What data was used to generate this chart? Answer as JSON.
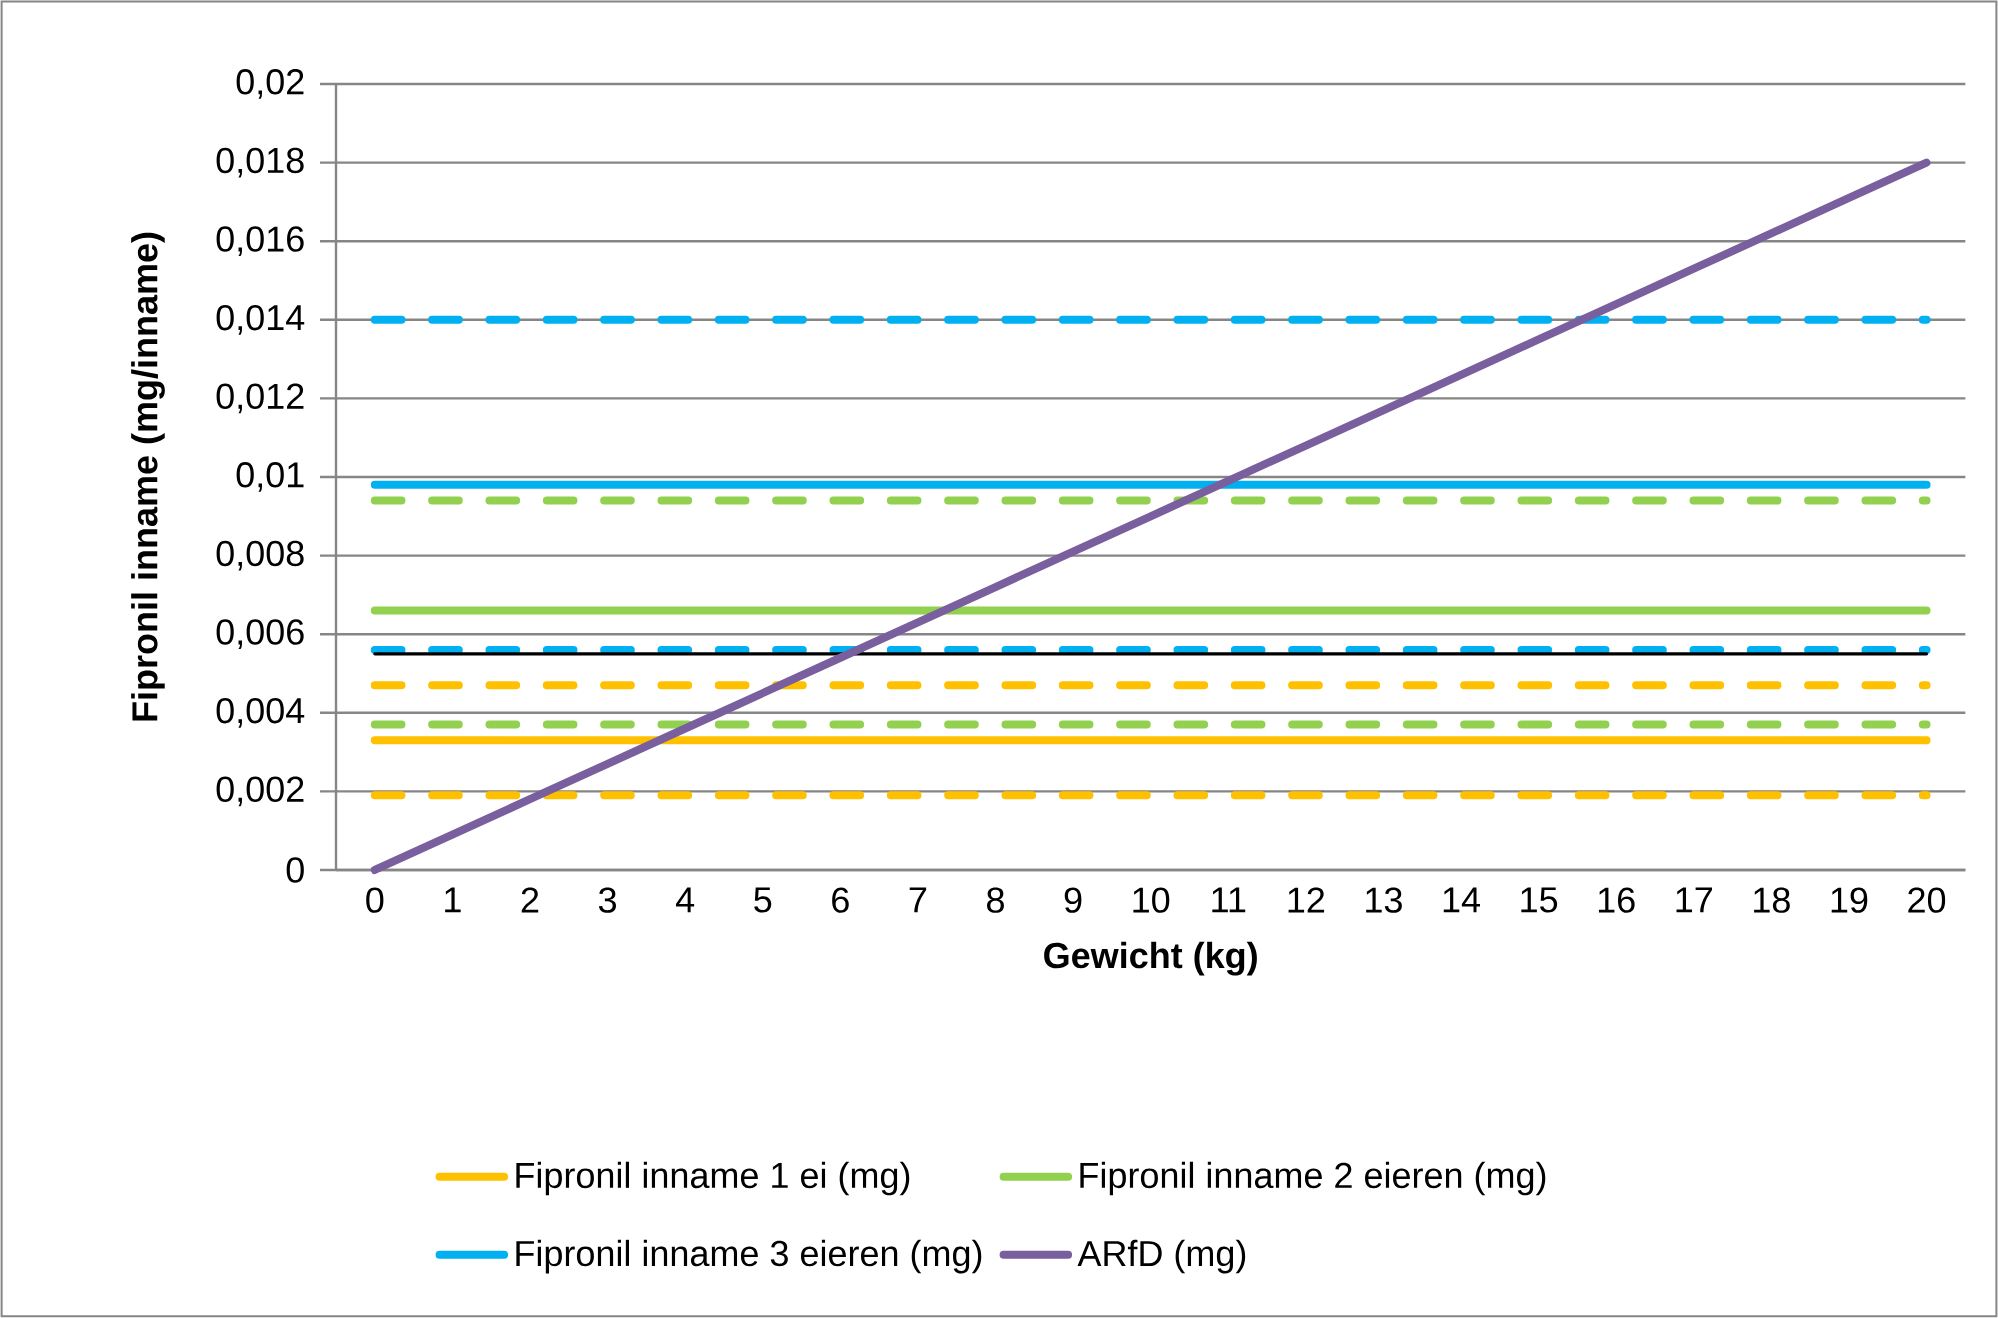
{
  "chart_data": {
    "type": "line",
    "xlabel": "Gewicht (kg)",
    "ylabel": "Fipronil inname (mg/inname)",
    "categories": [
      "0",
      "1",
      "2",
      "3",
      "4",
      "5",
      "6",
      "7",
      "8",
      "9",
      "10",
      "11",
      "12",
      "13",
      "14",
      "15",
      "16",
      "17",
      "18",
      "19",
      "20"
    ],
    "ylim": [
      0,
      0.02
    ],
    "yticks": [
      0,
      {
        "value": 0.002,
        "label": "0,002"
      },
      {
        "value": 0.004,
        "label": "0,004"
      },
      {
        "value": 0.006,
        "label": "0,006"
      },
      {
        "value": 0.008,
        "label": "0,008"
      },
      {
        "value": 0.01,
        "label": "0,01"
      },
      {
        "value": 0.012,
        "label": "0,012"
      },
      {
        "value": 0.014,
        "label": "0,014"
      },
      {
        "value": 0.016,
        "label": "0,016"
      },
      {
        "value": 0.018,
        "label": "0,018"
      },
      {
        "value": 0.02,
        "label": "0,02"
      }
    ],
    "grid": "y",
    "legend": "bottom",
    "marker": "none",
    "series": [
      {
        "color": "#ffc000",
        "line_style": "dashed",
        "values": [
          0.0019,
          0.0019,
          0.0019,
          0.0019,
          0.0019,
          0.0019,
          0.0019,
          0.0019,
          0.0019,
          0.0019,
          0.0019,
          0.0019,
          0.0019,
          0.0019,
          0.0019,
          0.0019,
          0.0019,
          0.0019,
          0.0019,
          0.0019,
          0.0019
        ]
      },
      {
        "color": "#ffc000",
        "line_style": "dashed",
        "values": [
          0.0047,
          0.0047,
          0.0047,
          0.0047,
          0.0047,
          0.0047,
          0.0047,
          0.0047,
          0.0047,
          0.0047,
          0.0047,
          0.0047,
          0.0047,
          0.0047,
          0.0047,
          0.0047,
          0.0047,
          0.0047,
          0.0047,
          0.0047,
          0.0047
        ]
      },
      {
        "color": "#92d050",
        "line_style": "dashed",
        "values": [
          0.0037,
          0.0037,
          0.0037,
          0.0037,
          0.0037,
          0.0037,
          0.0037,
          0.0037,
          0.0037,
          0.0037,
          0.0037,
          0.0037,
          0.0037,
          0.0037,
          0.0037,
          0.0037,
          0.0037,
          0.0037,
          0.0037,
          0.0037,
          0.0037
        ]
      },
      {
        "color": "#92d050",
        "line_style": "dashed",
        "values": [
          0.0094,
          0.0094,
          0.0094,
          0.0094,
          0.0094,
          0.0094,
          0.0094,
          0.0094,
          0.0094,
          0.0094,
          0.0094,
          0.0094,
          0.0094,
          0.0094,
          0.0094,
          0.0094,
          0.0094,
          0.0094,
          0.0094,
          0.0094,
          0.0094
        ]
      },
      {
        "color": "#00b0f0",
        "line_style": "dashed",
        "values": [
          0.0056,
          0.0056,
          0.0056,
          0.0056,
          0.0056,
          0.0056,
          0.0056,
          0.0056,
          0.0056,
          0.0056,
          0.0056,
          0.0056,
          0.0056,
          0.0056,
          0.0056,
          0.0056,
          0.0056,
          0.0056,
          0.0056,
          0.0056,
          0.0056
        ]
      },
      {
        "color": "#00b0f0",
        "line_style": "dashed",
        "values": [
          0.014,
          0.014,
          0.014,
          0.014,
          0.014,
          0.014,
          0.014,
          0.014,
          0.014,
          0.014,
          0.014,
          0.014,
          0.014,
          0.014,
          0.014,
          0.014,
          0.014,
          0.014,
          0.014,
          0.014,
          0.014
        ]
      },
      {
        "name": "Fipronil inname 1 ei (mg)",
        "color": "#ffc000",
        "line_style": "solid",
        "values": [
          0.0033,
          0.0033,
          0.0033,
          0.0033,
          0.0033,
          0.0033,
          0.0033,
          0.0033,
          0.0033,
          0.0033,
          0.0033,
          0.0033,
          0.0033,
          0.0033,
          0.0033,
          0.0033,
          0.0033,
          0.0033,
          0.0033,
          0.0033,
          0.0033
        ]
      },
      {
        "name": "Fipronil inname 2 eieren (mg)",
        "color": "#92d050",
        "line_style": "solid",
        "values": [
          0.0066,
          0.0066,
          0.0066,
          0.0066,
          0.0066,
          0.0066,
          0.0066,
          0.0066,
          0.0066,
          0.0066,
          0.0066,
          0.0066,
          0.0066,
          0.0066,
          0.0066,
          0.0066,
          0.0066,
          0.0066,
          0.0066,
          0.0066,
          0.0066
        ]
      },
      {
        "name": "Fipronil inname 3 eieren (mg)",
        "color": "#00b0f0",
        "line_style": "solid",
        "values": [
          0.0098,
          0.0098,
          0.0098,
          0.0098,
          0.0098,
          0.0098,
          0.0098,
          0.0098,
          0.0098,
          0.0098,
          0.0098,
          0.0098,
          0.0098,
          0.0098,
          0.0098,
          0.0098,
          0.0098,
          0.0098,
          0.0098,
          0.0098,
          0.0098
        ]
      },
      {
        "color": "#000000",
        "line_style": "solid",
        "values": [
          0.0055,
          0.0055,
          0.0055,
          0.0055,
          0.0055,
          0.0055,
          0.0055,
          0.0055,
          0.0055,
          0.0055,
          0.0055,
          0.0055,
          0.0055,
          0.0055,
          0.0055,
          0.0055,
          0.0055,
          0.0055,
          0.0055,
          0.0055,
          0.0055
        ]
      },
      {
        "name": "ARfD (mg)",
        "color": "#7a5f9e",
        "line_style": "solid",
        "values": [
          0,
          0.0009,
          0.0018,
          0.0027,
          0.0036,
          0.0045,
          0.0054,
          0.0063,
          0.0072,
          0.0081,
          0.009,
          0.0099,
          0.0108,
          0.0117,
          0.0126,
          0.0135,
          0.0144,
          0.0153,
          0.0162,
          0.0171,
          0.018
        ]
      }
    ]
  }
}
